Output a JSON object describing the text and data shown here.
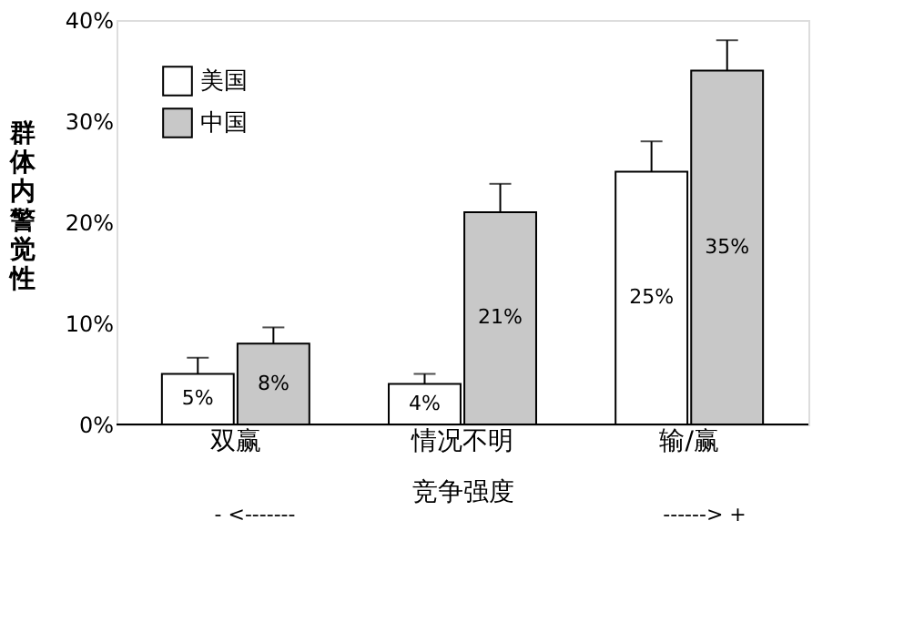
{
  "chart_data": {
    "type": "bar",
    "xlabel": "竞争强度",
    "ylabel": "群体内警觉性",
    "categories": [
      "双赢",
      "情况不明",
      "输/赢"
    ],
    "series": [
      {
        "name": "美国",
        "color": "#ffffff",
        "values": [
          5,
          4,
          25
        ],
        "errors": [
          [
            5,
            6.6
          ],
          [
            4,
            5
          ],
          [
            25,
            28
          ]
        ],
        "value_labels": [
          "5%",
          "4%",
          "25%"
        ]
      },
      {
        "name": "中国",
        "color": "#c8c8c8",
        "values": [
          8,
          21,
          35
        ],
        "errors": [
          [
            8,
            9.6
          ],
          [
            21,
            23.8
          ],
          [
            35,
            38
          ]
        ],
        "value_labels": [
          "8%",
          "21%",
          "35%"
        ]
      }
    ],
    "ylim": [
      0,
      40
    ],
    "yticks": [
      {
        "value": 0,
        "label": "0%"
      },
      {
        "value": 10,
        "label": "10%"
      },
      {
        "value": 20,
        "label": "20%"
      },
      {
        "value": 30,
        "label": "30%"
      },
      {
        "value": 40,
        "label": "40%"
      }
    ],
    "annotations": [
      "- <-------",
      "------> +"
    ],
    "legend": "top left",
    "grid": false
  }
}
